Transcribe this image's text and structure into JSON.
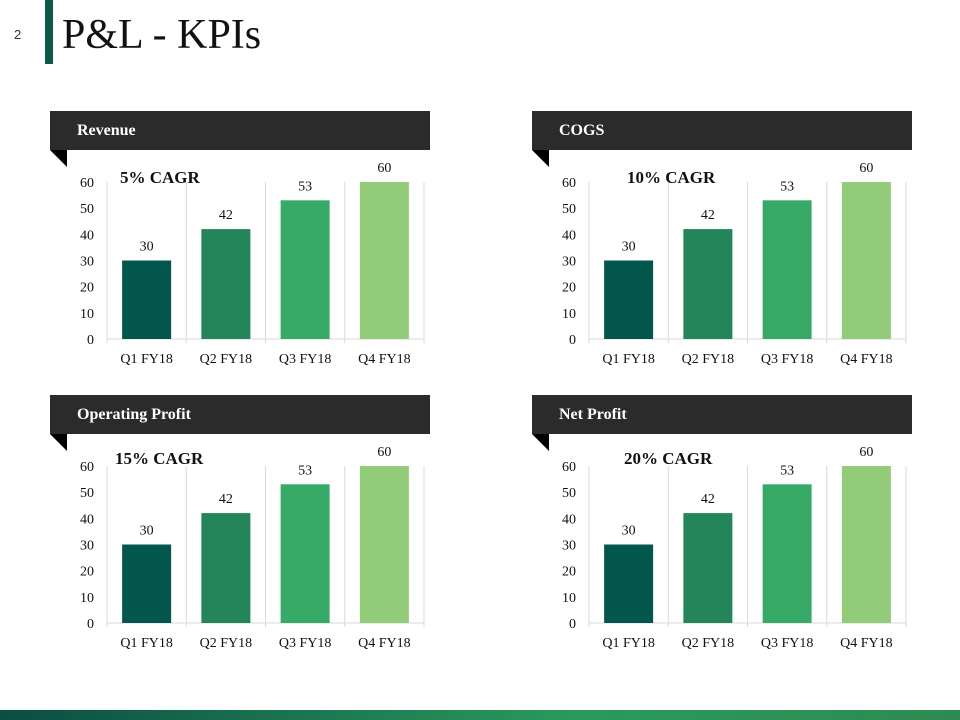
{
  "page": {
    "number": "2",
    "title": "P&L - KPIs"
  },
  "colors": {
    "bar_colors": [
      "#03564c",
      "#238559",
      "#37aa68",
      "#93cc78"
    ],
    "header_bg": "#2b2b2b",
    "accent": "#0d5a4c"
  },
  "chart_data": [
    {
      "type": "bar",
      "title": "Revenue",
      "annotation": "5% CAGR",
      "categories": [
        "Q1 FY18",
        "Q2 FY18",
        "Q3 FY18",
        "Q4 FY18"
      ],
      "values": [
        30,
        42,
        53,
        60
      ],
      "ylim": [
        0,
        60
      ],
      "yticks": [
        0,
        10,
        20,
        30,
        40,
        50,
        60
      ],
      "xlabel": "",
      "ylabel": "",
      "grid": false
    },
    {
      "type": "bar",
      "title": "COGS",
      "annotation": "10% CAGR",
      "categories": [
        "Q1 FY18",
        "Q2 FY18",
        "Q3 FY18",
        "Q4 FY18"
      ],
      "values": [
        30,
        42,
        53,
        60
      ],
      "ylim": [
        0,
        60
      ],
      "yticks": [
        0,
        10,
        20,
        30,
        40,
        50,
        60
      ],
      "xlabel": "",
      "ylabel": "",
      "grid": false
    },
    {
      "type": "bar",
      "title": "Operating Profit",
      "annotation": "15% CAGR",
      "categories": [
        "Q1 FY18",
        "Q2 FY18",
        "Q3 FY18",
        "Q4 FY18"
      ],
      "values": [
        30,
        42,
        53,
        60
      ],
      "ylim": [
        0,
        60
      ],
      "yticks": [
        0,
        10,
        20,
        30,
        40,
        50,
        60
      ],
      "xlabel": "",
      "ylabel": "",
      "grid": false
    },
    {
      "type": "bar",
      "title": "Net Profit",
      "annotation": "20% CAGR",
      "categories": [
        "Q1 FY18",
        "Q2 FY18",
        "Q3 FY18",
        "Q4 FY18"
      ],
      "values": [
        30,
        42,
        53,
        60
      ],
      "ylim": [
        0,
        60
      ],
      "yticks": [
        0,
        10,
        20,
        30,
        40,
        50,
        60
      ],
      "xlabel": "",
      "ylabel": "",
      "grid": false
    }
  ]
}
